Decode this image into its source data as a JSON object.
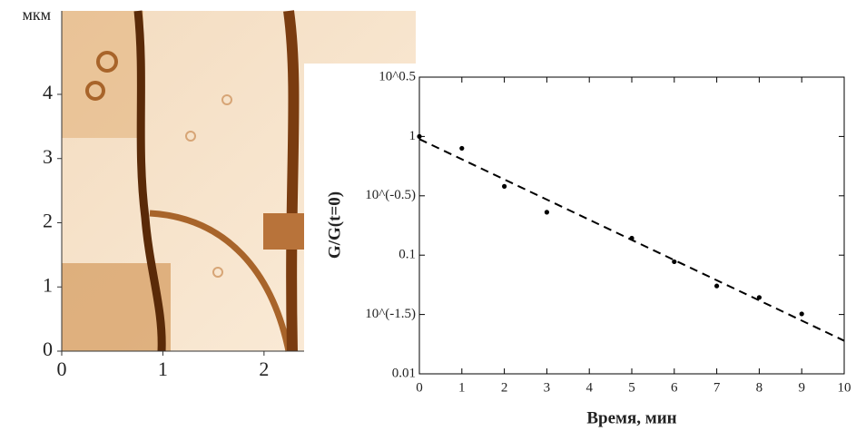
{
  "chart_data": [
    {
      "type": "image",
      "ylabel": "мкм",
      "xlim": [
        0,
        3.5
      ],
      "ylim": [
        0,
        5.3
      ],
      "xticks": [
        0,
        1,
        2
      ],
      "yticks": [
        0,
        1,
        2,
        3,
        4
      ]
    },
    {
      "type": "scatter",
      "xlabel": "Время, мин",
      "ylabel": "G/G(t=0)",
      "x": [
        0,
        1,
        2,
        3,
        5,
        6,
        7,
        8,
        9
      ],
      "values": [
        1.0,
        0.795,
        0.38,
        0.23,
        0.139,
        0.088,
        0.055,
        0.044,
        0.032
      ],
      "color": "#000000",
      "fit": {
        "x": [
          0,
          10
        ],
        "values": [
          0.95,
          0.019
        ],
        "color": "#000000",
        "dashed": true
      },
      "xlim": [
        0,
        10
      ],
      "ylim": [
        0.01,
        3.16228
      ],
      "log_scale_y": true,
      "xticks": [
        0,
        1,
        2,
        3,
        4,
        5,
        6,
        7,
        8,
        9,
        10
      ],
      "yticks": [
        0.01,
        {
          "value": 0.031623,
          "label": "10^(-1.5)"
        },
        0.1,
        {
          "value": 0.31623,
          "label": "10^(-0.5)"
        },
        1,
        {
          "value": 3.16228,
          "label": "10^0.5"
        }
      ]
    }
  ]
}
